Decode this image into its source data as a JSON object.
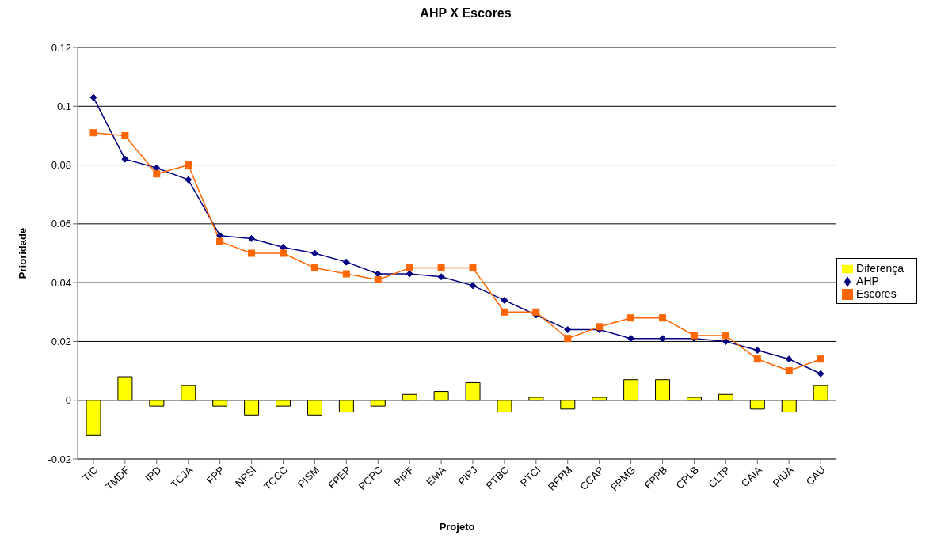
{
  "chart_data": {
    "type": "line",
    "title": "AHP X Escores",
    "xlabel": "Projeto",
    "ylabel": "Prioridade",
    "categories": [
      "TIC",
      "TMDF",
      "IPD",
      "TCJA",
      "FPP",
      "NPSI",
      "TCCC",
      "PISM",
      "FPEP",
      "PCPC",
      "PIPF",
      "EMA",
      "PIPJ",
      "PTBC",
      "PTCI",
      "RFPM",
      "CCAP",
      "FPMG",
      "FPPB",
      "CPLB",
      "CLTP",
      "CAIA",
      "PIUA",
      "CAU"
    ],
    "series": [
      {
        "name": "Diferença",
        "type": "bar",
        "color": "#ffff00",
        "values": [
          -0.012,
          0.008,
          -0.002,
          0.005,
          -0.002,
          -0.005,
          -0.002,
          -0.005,
          -0.004,
          -0.002,
          0.002,
          0.003,
          0.006,
          -0.004,
          0.001,
          -0.003,
          0.001,
          0.007,
          0.007,
          0.001,
          0.002,
          -0.003,
          -0.004,
          0.005
        ]
      },
      {
        "name": "AHP",
        "color": "#000080",
        "marker": "diamond",
        "values": [
          0.103,
          0.082,
          0.079,
          0.075,
          0.056,
          0.055,
          0.052,
          0.05,
          0.047,
          0.043,
          0.043,
          0.042,
          0.039,
          0.034,
          0.029,
          0.024,
          0.024,
          0.021,
          0.021,
          0.021,
          0.02,
          0.017,
          0.014,
          0.009
        ]
      },
      {
        "name": "Escores",
        "color": "#ff6600",
        "marker": "square",
        "values": [
          0.091,
          0.09,
          0.077,
          0.08,
          0.054,
          0.05,
          0.05,
          0.045,
          0.043,
          0.041,
          0.045,
          0.045,
          0.045,
          0.03,
          0.03,
          0.021,
          0.025,
          0.028,
          0.028,
          0.022,
          0.022,
          0.014,
          0.01,
          0.014
        ]
      }
    ],
    "ylim": [
      -0.02,
      0.12
    ],
    "yticks": [
      -0.02,
      0,
      0.02,
      0.04,
      0.06,
      0.08,
      0.1,
      0.12
    ],
    "grid": "y",
    "legend": "right"
  }
}
